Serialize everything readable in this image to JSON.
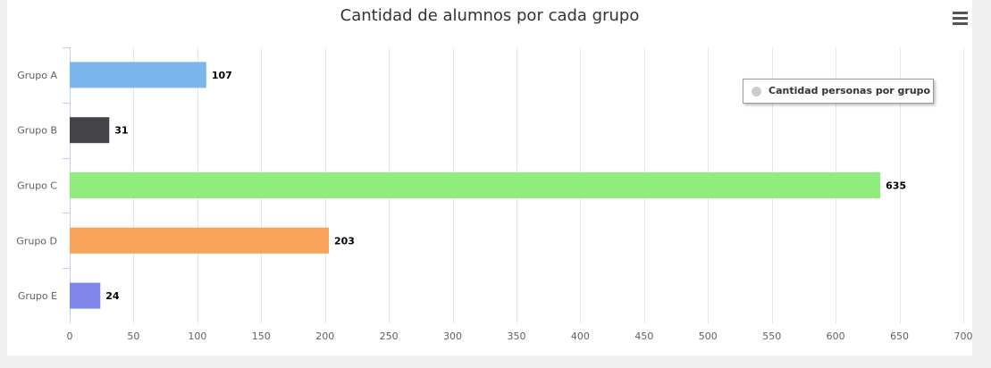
{
  "chart_data": {
    "type": "bar",
    "orientation": "horizontal",
    "title": "Cantidad de alumnos por cada grupo",
    "categories": [
      "Grupo A",
      "Grupo B",
      "Grupo C",
      "Grupo D",
      "Grupo E"
    ],
    "values": [
      107,
      31,
      635,
      203,
      24
    ],
    "colors": [
      "#7cb5ec",
      "#434348",
      "#90ed7d",
      "#f7a35c",
      "#8085e9"
    ],
    "series": [
      {
        "name": "Cantidad personas por grupo",
        "values": [
          107,
          31,
          635,
          203,
          24
        ]
      }
    ],
    "xlim": [
      0,
      700
    ],
    "ticks": [
      0,
      50,
      100,
      150,
      200,
      250,
      300,
      350,
      400,
      450,
      500,
      550,
      600,
      650,
      700
    ],
    "grid": true,
    "legend_position": "top-right",
    "data_labels": true
  },
  "legend": {
    "label": "Cantidad personas por grupo",
    "marker_color": "#cccccc"
  },
  "menu_icon": "hamburger-menu-icon"
}
